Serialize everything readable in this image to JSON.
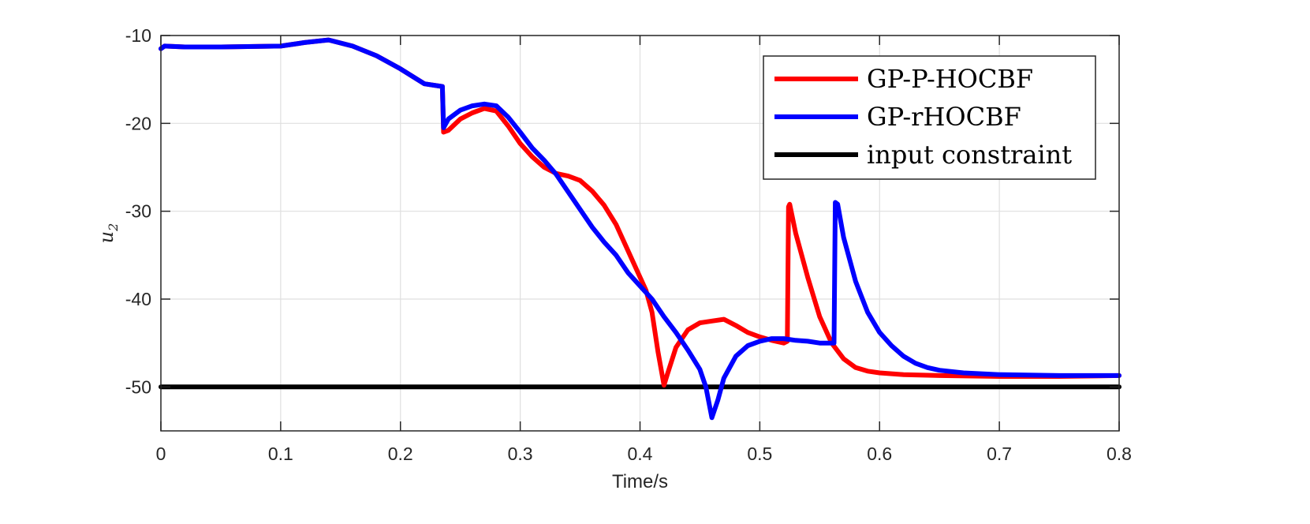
{
  "chart_data": {
    "type": "line",
    "xlabel": "Time/s",
    "ylabel": "u",
    "ylabel_sub": "2",
    "xlim": [
      0,
      0.8
    ],
    "ylim": [
      -55,
      -10
    ],
    "xticks": [
      0,
      0.1,
      0.2,
      0.3,
      0.4,
      0.5,
      0.6,
      0.7,
      0.8
    ],
    "xtick_labels": [
      "0",
      "0.1",
      "0.2",
      "0.3",
      "0.4",
      "0.5",
      "0.6",
      "0.7",
      "0.8"
    ],
    "yticks": [
      -10,
      -20,
      -30,
      -40,
      -50
    ],
    "ytick_labels": [
      "-10",
      "-20",
      "-30",
      "-40",
      "-50"
    ],
    "grid": true,
    "legend_position": "top-right",
    "series": [
      {
        "name": "GP-P-HOCBF",
        "color": "#ff0000",
        "x": [
          0,
          0.003,
          0.02,
          0.05,
          0.1,
          0.12,
          0.14,
          0.16,
          0.18,
          0.2,
          0.22,
          0.235,
          0.236,
          0.24,
          0.25,
          0.26,
          0.27,
          0.28,
          0.29,
          0.3,
          0.31,
          0.32,
          0.33,
          0.34,
          0.35,
          0.36,
          0.37,
          0.38,
          0.39,
          0.4,
          0.405,
          0.41,
          0.415,
          0.42,
          0.423,
          0.43,
          0.44,
          0.45,
          0.46,
          0.47,
          0.48,
          0.49,
          0.5,
          0.51,
          0.52,
          0.523,
          0.524,
          0.525,
          0.53,
          0.54,
          0.55,
          0.56,
          0.57,
          0.58,
          0.59,
          0.6,
          0.62,
          0.65,
          0.7,
          0.75,
          0.8
        ],
        "y": [
          -11.5,
          -11.2,
          -11.3,
          -11.3,
          -11.2,
          -10.8,
          -10.5,
          -11.2,
          -12.3,
          -13.8,
          -15.5,
          -15.8,
          -21.0,
          -20.8,
          -19.5,
          -18.8,
          -18.3,
          -18.6,
          -20.3,
          -22.3,
          -23.8,
          -25.0,
          -25.7,
          -26.0,
          -26.5,
          -27.7,
          -29.3,
          -31.5,
          -34.5,
          -37.5,
          -39.0,
          -41.5,
          -46.0,
          -49.8,
          -48.5,
          -45.5,
          -43.5,
          -42.7,
          -42.5,
          -42.3,
          -43.0,
          -43.8,
          -44.3,
          -44.7,
          -45.0,
          -44.8,
          -29.5,
          -29.2,
          -32.5,
          -37.5,
          -42.0,
          -45.0,
          -46.8,
          -47.8,
          -48.2,
          -48.4,
          -48.6,
          -48.7,
          -48.8,
          -48.8,
          -48.7
        ]
      },
      {
        "name": "GP-rHOCBF",
        "color": "#0000ff",
        "x": [
          0,
          0.003,
          0.02,
          0.05,
          0.1,
          0.12,
          0.14,
          0.16,
          0.18,
          0.2,
          0.22,
          0.235,
          0.236,
          0.24,
          0.25,
          0.26,
          0.27,
          0.28,
          0.29,
          0.3,
          0.31,
          0.32,
          0.33,
          0.34,
          0.35,
          0.36,
          0.37,
          0.38,
          0.39,
          0.4,
          0.41,
          0.42,
          0.43,
          0.44,
          0.45,
          0.455,
          0.46,
          0.465,
          0.47,
          0.48,
          0.49,
          0.5,
          0.51,
          0.52,
          0.53,
          0.54,
          0.55,
          0.56,
          0.562,
          0.563,
          0.565,
          0.57,
          0.58,
          0.59,
          0.6,
          0.61,
          0.62,
          0.63,
          0.64,
          0.65,
          0.67,
          0.7,
          0.75,
          0.8
        ],
        "y": [
          -11.5,
          -11.2,
          -11.3,
          -11.3,
          -11.2,
          -10.8,
          -10.5,
          -11.2,
          -12.3,
          -13.8,
          -15.5,
          -15.8,
          -20.5,
          -19.5,
          -18.5,
          -18.0,
          -17.8,
          -18.0,
          -19.3,
          -21.0,
          -22.8,
          -24.2,
          -25.8,
          -27.8,
          -29.8,
          -31.8,
          -33.5,
          -35.0,
          -37.0,
          -38.5,
          -40.0,
          -42.0,
          -43.8,
          -45.8,
          -48.0,
          -50.0,
          -53.5,
          -51.5,
          -49.0,
          -46.5,
          -45.3,
          -44.8,
          -44.5,
          -44.5,
          -44.7,
          -44.8,
          -45.0,
          -45.0,
          -45.0,
          -29.0,
          -29.2,
          -33.0,
          -38.0,
          -41.5,
          -43.8,
          -45.3,
          -46.5,
          -47.3,
          -47.8,
          -48.1,
          -48.4,
          -48.6,
          -48.7,
          -48.7
        ]
      },
      {
        "name": "input constraint",
        "color": "#000000",
        "x": [
          0,
          0.8
        ],
        "y": [
          -50,
          -50
        ]
      }
    ]
  }
}
